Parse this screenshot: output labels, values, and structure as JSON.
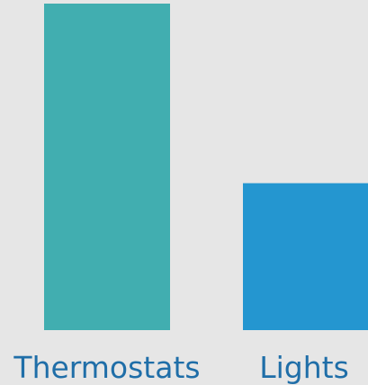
{
  "chart_data": {
    "type": "bar",
    "categories": [
      "Thermostats",
      "Lights"
    ],
    "values": [
      100,
      45
    ],
    "colors": [
      "#41aeb0",
      "#2496d0"
    ],
    "title": "",
    "xlabel": "",
    "ylabel": "",
    "ylim": [
      0,
      100
    ],
    "grid": false,
    "legend": "none"
  }
}
